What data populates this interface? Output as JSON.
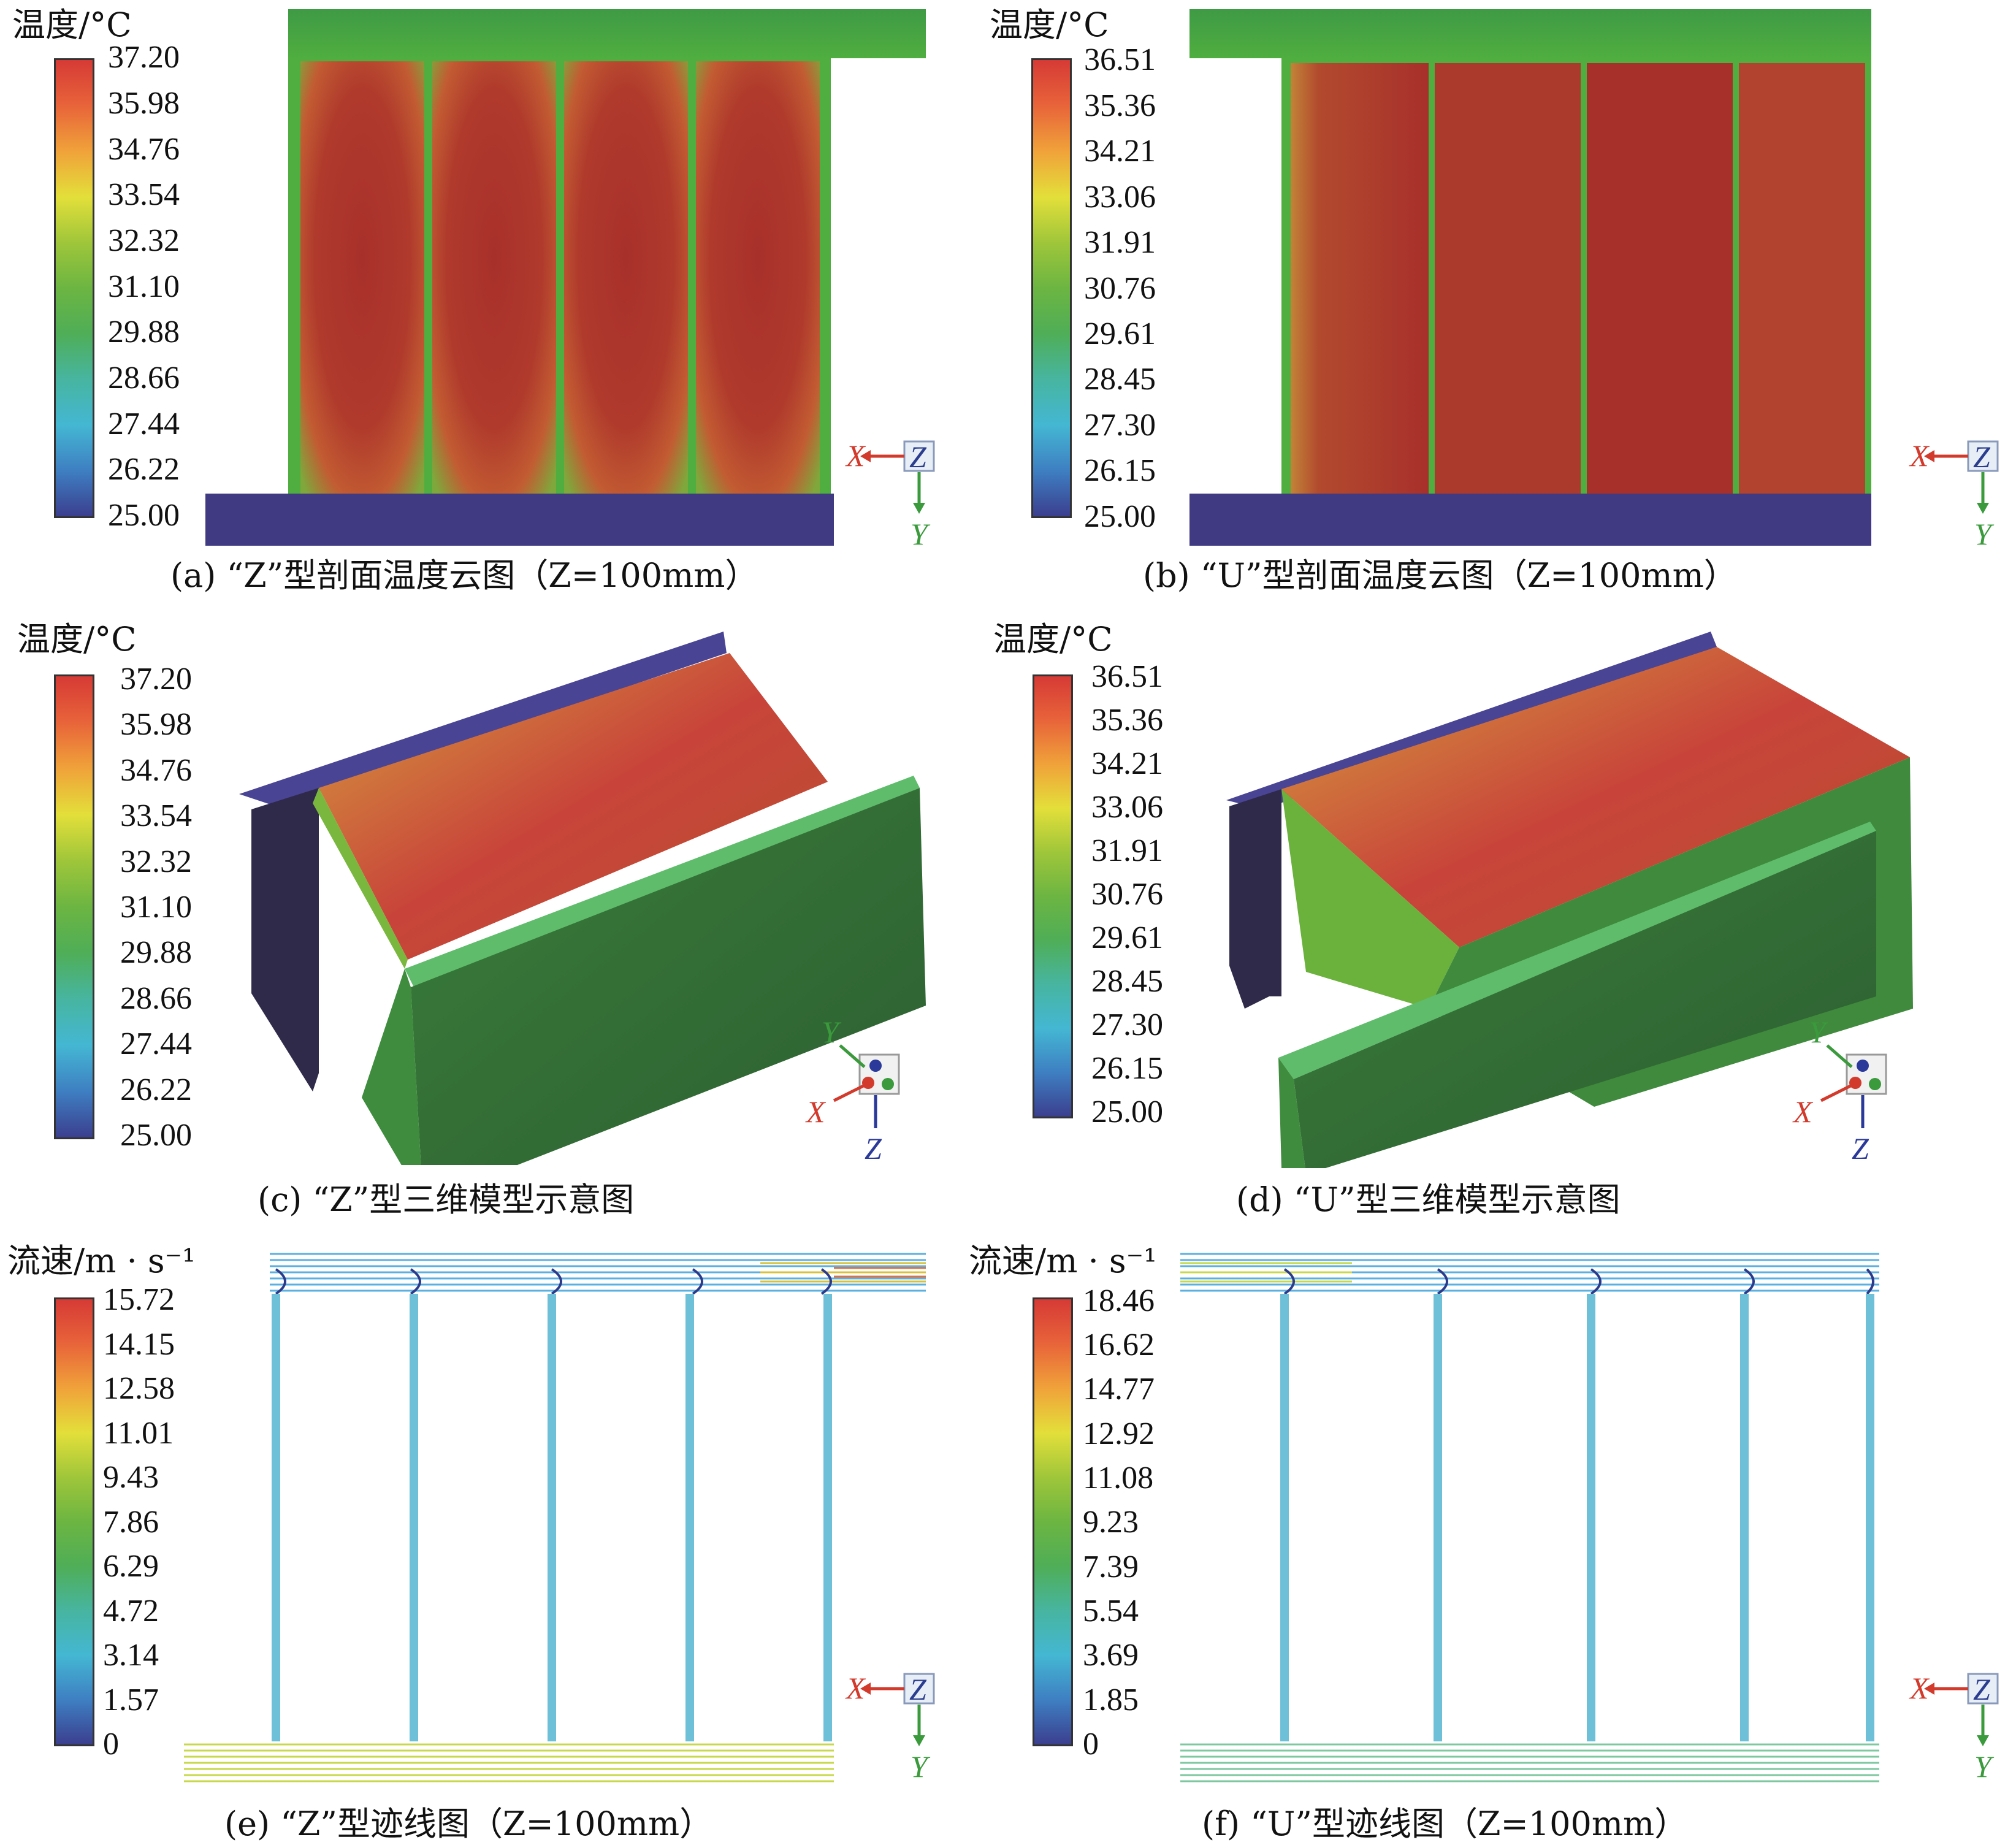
{
  "panels": {
    "a": {
      "legend_title": "温度/°C",
      "ticks": [
        "37.20",
        "35.98",
        "34.76",
        "33.54",
        "32.32",
        "31.10",
        "29.88",
        "28.66",
        "27.44",
        "26.22",
        "25.00"
      ],
      "caption": "(a) “Z”型剖面温度云图（Z=100mm）",
      "axes": {
        "x": "X",
        "y": "Y",
        "z": "Z"
      }
    },
    "b": {
      "legend_title": "温度/°C",
      "ticks": [
        "36.51",
        "35.36",
        "34.21",
        "33.06",
        "31.91",
        "30.76",
        "29.61",
        "28.45",
        "27.30",
        "26.15",
        "25.00"
      ],
      "caption": "(b) “U”型剖面温度云图（Z=100mm）",
      "axes": {
        "x": "X",
        "y": "Y",
        "z": "Z"
      }
    },
    "c": {
      "legend_title": "温度/°C",
      "ticks": [
        "37.20",
        "35.98",
        "34.76",
        "33.54",
        "32.32",
        "31.10",
        "29.88",
        "28.66",
        "27.44",
        "26.22",
        "25.00"
      ],
      "caption": "(c) “Z”型三维模型示意图",
      "axes": {
        "x": "X",
        "y": "Y",
        "z": "Z"
      }
    },
    "d": {
      "legend_title": "温度/°C",
      "ticks": [
        "36.51",
        "35.36",
        "34.21",
        "33.06",
        "31.91",
        "30.76",
        "29.61",
        "28.45",
        "27.30",
        "26.15",
        "25.00"
      ],
      "caption": "(d) “U”型三维模型示意图",
      "axes": {
        "x": "X",
        "y": "Y",
        "z": "Z"
      }
    },
    "e": {
      "legend_title": "流速/m · s⁻¹",
      "ticks": [
        "15.72",
        "14.15",
        "12.58",
        "11.01",
        "9.43",
        "7.86",
        "6.29",
        "4.72",
        "3.14",
        "1.57",
        "0"
      ],
      "caption": "(e) “Z”型迹线图（Z=100mm）",
      "axes": {
        "x": "X",
        "y": "Y",
        "z": "Z"
      }
    },
    "f": {
      "legend_title": "流速/m · s⁻¹",
      "ticks": [
        "18.46",
        "16.62",
        "14.77",
        "12.92",
        "11.08",
        "9.23",
        "7.39",
        "5.54",
        "3.69",
        "1.85",
        "0"
      ],
      "caption": "(f) “U”型迹线图（Z=100mm）",
      "axes": {
        "x": "X",
        "y": "Y",
        "z": "Z"
      }
    }
  },
  "colors": {
    "hot": "#b0342a",
    "warm": "#d9653a",
    "green": "#4fae3f",
    "dark_green": "#2f6b33",
    "plate": "#3f3a82",
    "stream": "#5cb8d8"
  }
}
